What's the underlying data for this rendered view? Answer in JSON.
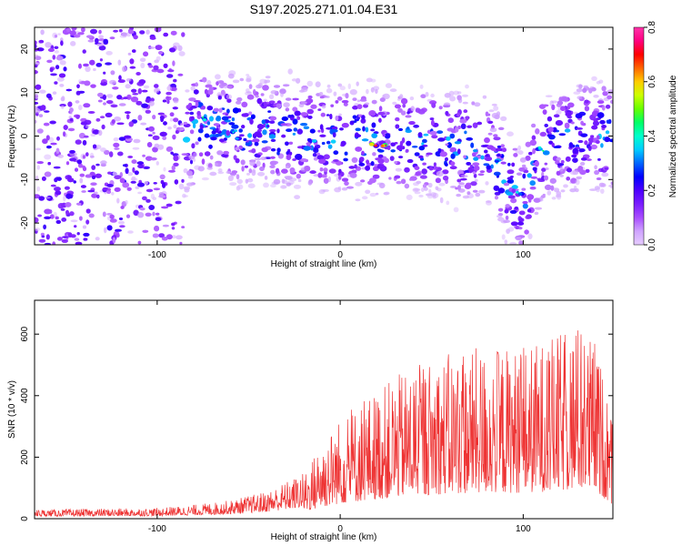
{
  "title": "S197.2025.271.01.04.E31",
  "chart_data": [
    {
      "type": "heatmap",
      "xlabel": "Height of straight line (km)",
      "ylabel": "Frequency (Hz)",
      "xlim": [
        -167,
        149
      ],
      "ylim": [
        -25,
        25
      ],
      "xticks": [
        -100,
        0,
        100
      ],
      "yticks": [
        -20,
        -10,
        0,
        10,
        20
      ],
      "colorbar": {
        "label": "Normalized spectral amplitude",
        "range": [
          0.0,
          0.8
        ],
        "ticks": [
          "0.0",
          "0.2",
          "0.4",
          "0.6",
          "0.8"
        ],
        "colors": [
          "#e6ccff",
          "#cfa3ff",
          "#a84dff",
          "#7a1cff",
          "#4d00ff",
          "#0000ff",
          "#0066ff",
          "#00ccff",
          "#00ffcc",
          "#00ff66",
          "#66ff00",
          "#ccff00",
          "#ffcc00",
          "#ff6600",
          "#ff0000",
          "#ff0080",
          "#ff33aa"
        ]
      },
      "signal_band": [
        {
          "x": -80,
          "f": 4
        },
        {
          "x": -60,
          "f": 2
        },
        {
          "x": -40,
          "f": 1
        },
        {
          "x": -20,
          "f": 0
        },
        {
          "x": 0,
          "f": -1
        },
        {
          "x": 20,
          "f": -1
        },
        {
          "x": 40,
          "f": -1
        },
        {
          "x": 60,
          "f": -2
        },
        {
          "x": 80,
          "f": -3
        },
        {
          "x": 95,
          "f": -13
        },
        {
          "x": 100,
          "f": -15
        },
        {
          "x": 110,
          "f": -3
        },
        {
          "x": 130,
          "f": 0
        },
        {
          "x": 149,
          "f": 0
        }
      ],
      "peaks": [
        {
          "x": 18,
          "f": -2,
          "amp": 0.8
        },
        {
          "x": 24,
          "f": -2,
          "amp": 0.75
        },
        {
          "x": -75,
          "f": 4,
          "amp": 0.45
        },
        {
          "x": -58,
          "f": 1,
          "amp": 0.4
        },
        {
          "x": 110,
          "f": -3,
          "amp": 0.45
        },
        {
          "x": 98,
          "f": -13,
          "amp": 0.4
        }
      ]
    },
    {
      "type": "line",
      "xlabel": "Height of straight line (km)",
      "ylabel": "SNR (10 * v/v)",
      "xlim": [
        -167,
        149
      ],
      "ylim": [
        0,
        710
      ],
      "xticks": [
        -100,
        0,
        100
      ],
      "yticks": [
        0,
        200,
        400,
        600
      ],
      "color": "#ee3333",
      "envelope": [
        {
          "x": -167,
          "y": 30
        },
        {
          "x": -100,
          "y": 35
        },
        {
          "x": -80,
          "y": 45
        },
        {
          "x": -60,
          "y": 60
        },
        {
          "x": -40,
          "y": 90
        },
        {
          "x": -20,
          "y": 150
        },
        {
          "x": -10,
          "y": 250
        },
        {
          "x": 0,
          "y": 330
        },
        {
          "x": 20,
          "y": 420
        },
        {
          "x": 40,
          "y": 500
        },
        {
          "x": 60,
          "y": 540
        },
        {
          "x": 80,
          "y": 560
        },
        {
          "x": 100,
          "y": 560
        },
        {
          "x": 120,
          "y": 600
        },
        {
          "x": 130,
          "y": 640
        },
        {
          "x": 140,
          "y": 580
        },
        {
          "x": 149,
          "y": 300
        }
      ]
    }
  ]
}
